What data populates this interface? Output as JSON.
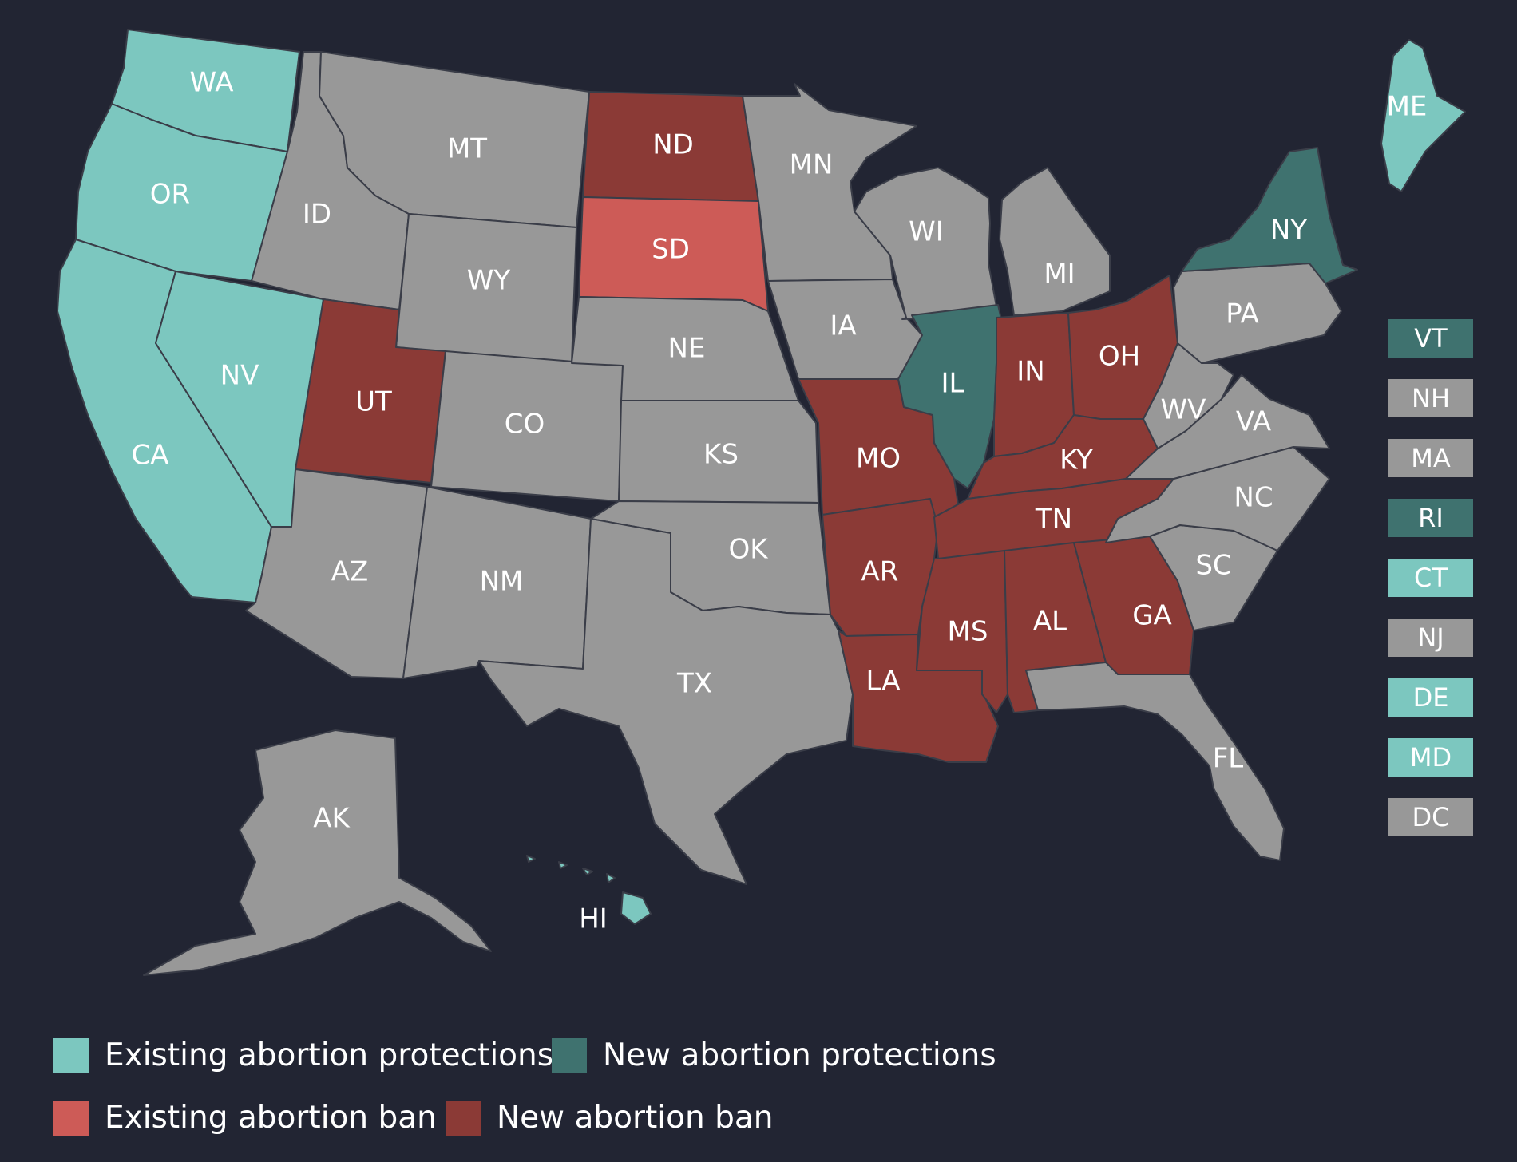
{
  "colors": {
    "background": "#222533",
    "existing_protection": "#7cc7bf",
    "new_protection": "#3f726f",
    "existing_ban": "#cd5b57",
    "new_ban": "#8b3a36",
    "no_change": "#989898",
    "border": "#3a3d48"
  },
  "states": [
    {
      "abbr": "WA",
      "category": "existing_protection"
    },
    {
      "abbr": "OR",
      "category": "existing_protection"
    },
    {
      "abbr": "CA",
      "category": "existing_protection"
    },
    {
      "abbr": "NV",
      "category": "existing_protection"
    },
    {
      "abbr": "ID",
      "category": "no_change"
    },
    {
      "abbr": "MT",
      "category": "no_change"
    },
    {
      "abbr": "WY",
      "category": "no_change"
    },
    {
      "abbr": "UT",
      "category": "new_ban"
    },
    {
      "abbr": "AZ",
      "category": "no_change"
    },
    {
      "abbr": "CO",
      "category": "no_change"
    },
    {
      "abbr": "NM",
      "category": "no_change"
    },
    {
      "abbr": "ND",
      "category": "new_ban"
    },
    {
      "abbr": "SD",
      "category": "existing_ban"
    },
    {
      "abbr": "NE",
      "category": "no_change"
    },
    {
      "abbr": "KS",
      "category": "no_change"
    },
    {
      "abbr": "OK",
      "category": "no_change"
    },
    {
      "abbr": "TX",
      "category": "no_change"
    },
    {
      "abbr": "MN",
      "category": "no_change"
    },
    {
      "abbr": "IA",
      "category": "no_change"
    },
    {
      "abbr": "MO",
      "category": "new_ban"
    },
    {
      "abbr": "AR",
      "category": "new_ban"
    },
    {
      "abbr": "LA",
      "category": "new_ban"
    },
    {
      "abbr": "WI",
      "category": "no_change"
    },
    {
      "abbr": "IL",
      "category": "new_protection"
    },
    {
      "abbr": "MI",
      "category": "no_change"
    },
    {
      "abbr": "IN",
      "category": "new_ban"
    },
    {
      "abbr": "OH",
      "category": "new_ban"
    },
    {
      "abbr": "KY",
      "category": "new_ban"
    },
    {
      "abbr": "TN",
      "category": "new_ban"
    },
    {
      "abbr": "MS",
      "category": "new_ban"
    },
    {
      "abbr": "AL",
      "category": "new_ban"
    },
    {
      "abbr": "GA",
      "category": "new_ban"
    },
    {
      "abbr": "FL",
      "category": "no_change"
    },
    {
      "abbr": "SC",
      "category": "no_change"
    },
    {
      "abbr": "NC",
      "category": "no_change"
    },
    {
      "abbr": "VA",
      "category": "no_change"
    },
    {
      "abbr": "WV",
      "category": "no_change"
    },
    {
      "abbr": "PA",
      "category": "no_change"
    },
    {
      "abbr": "NY",
      "category": "new_protection"
    },
    {
      "abbr": "ME",
      "category": "existing_protection"
    },
    {
      "abbr": "AK",
      "category": "no_change"
    },
    {
      "abbr": "HI",
      "category": "existing_protection"
    }
  ],
  "small_states": [
    {
      "abbr": "VT",
      "category": "new_protection"
    },
    {
      "abbr": "NH",
      "category": "no_change"
    },
    {
      "abbr": "MA",
      "category": "no_change"
    },
    {
      "abbr": "RI",
      "category": "new_protection"
    },
    {
      "abbr": "CT",
      "category": "existing_protection"
    },
    {
      "abbr": "NJ",
      "category": "no_change"
    },
    {
      "abbr": "DE",
      "category": "existing_protection"
    },
    {
      "abbr": "MD",
      "category": "existing_protection"
    },
    {
      "abbr": "DC",
      "category": "no_change"
    }
  ],
  "legend": [
    {
      "label": "Existing abortion protections",
      "category": "existing_protection"
    },
    {
      "label": "New abortion protections",
      "category": "new_protection"
    },
    {
      "label": "Existing abortion ban",
      "category": "existing_ban"
    },
    {
      "label": "New abortion ban",
      "category": "new_ban"
    }
  ]
}
